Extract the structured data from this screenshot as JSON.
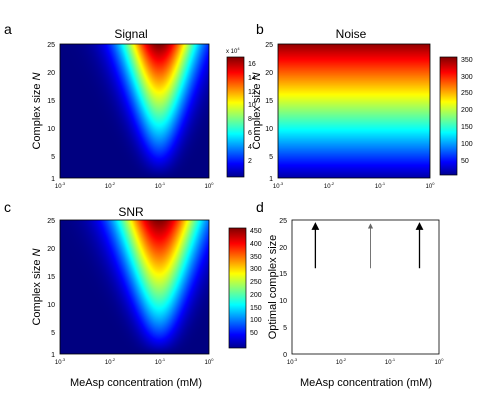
{
  "panels": [
    {
      "letter": "a",
      "title": "Signal",
      "ylabel_main": "Complex size ",
      "ylabel_var": "N",
      "xticks": [
        {
          "base": "10",
          "exp": "-3"
        },
        {
          "base": "10",
          "exp": "-2"
        },
        {
          "base": "10",
          "exp": "-1"
        },
        {
          "base": "10",
          "exp": "0"
        }
      ],
      "yticks": [
        "1",
        "5",
        "10",
        "15",
        "20",
        "25"
      ],
      "colorbar_ticks": [
        "2",
        "4",
        "6",
        "8",
        "10",
        "12",
        "14",
        "16"
      ],
      "colorbar_multiplier": {
        "prefix": "x 10",
        "exp": "4"
      }
    },
    {
      "letter": "b",
      "title": "Noise",
      "ylabel_main": "Complex size ",
      "ylabel_var": "N",
      "xticks": [
        {
          "base": "10",
          "exp": "-3"
        },
        {
          "base": "10",
          "exp": "-2"
        },
        {
          "base": "10",
          "exp": "-1"
        },
        {
          "base": "10",
          "exp": "0"
        }
      ],
      "yticks": [
        "1",
        "5",
        "10",
        "15",
        "20",
        "25"
      ],
      "colorbar_ticks": [
        "50",
        "100",
        "150",
        "200",
        "250",
        "300",
        "350"
      ]
    },
    {
      "letter": "c",
      "title": "SNR",
      "ylabel_main": "Complex size ",
      "ylabel_var": "N",
      "xlabel": "MeAsp concentration (mM)",
      "xticks": [
        {
          "base": "10",
          "exp": "-3"
        },
        {
          "base": "10",
          "exp": "-2"
        },
        {
          "base": "10",
          "exp": "-1"
        },
        {
          "base": "10",
          "exp": "0"
        }
      ],
      "yticks": [
        "1",
        "5",
        "10",
        "15",
        "20",
        "25"
      ],
      "colorbar_ticks": [
        "50",
        "100",
        "150",
        "200",
        "250",
        "300",
        "350",
        "400",
        "450"
      ]
    },
    {
      "letter": "d",
      "ylabel": "Optimal complex size",
      "xlabel": "MeAsp concentration (mM)",
      "xticks": [
        {
          "base": "10",
          "exp": "-3"
        },
        {
          "base": "10",
          "exp": "-2"
        },
        {
          "base": "10",
          "exp": "-1"
        },
        {
          "base": "10",
          "exp": "0"
        }
      ],
      "yticks": [
        "0",
        "5",
        "10",
        "15",
        "20",
        "25"
      ]
    }
  ],
  "chart_data": [
    {
      "type": "heatmap",
      "panel": "a",
      "title": "Signal",
      "ylabel": "Complex size N",
      "xscale": "log",
      "xlim": [
        0.001,
        1
      ],
      "ylim": [
        1,
        25
      ],
      "colorbar_range": [
        0,
        170000
      ],
      "peak": {
        "x": 0.1,
        "y": 25,
        "value": 170000
      },
      "colormap": "jet"
    },
    {
      "type": "heatmap",
      "panel": "b",
      "title": "Noise",
      "ylabel": "Complex size N",
      "xscale": "log",
      "xlim": [
        0.001,
        1
      ],
      "ylim": [
        1,
        25
      ],
      "colorbar_range": [
        20,
        370
      ],
      "colormap": "jet"
    },
    {
      "type": "heatmap",
      "panel": "c",
      "title": "SNR",
      "ylabel": "Complex size N",
      "xlabel": "MeAsp concentration (mM)",
      "xscale": "log",
      "xlim": [
        0.001,
        1
      ],
      "ylim": [
        1,
        25
      ],
      "colorbar_range": [
        0,
        470
      ],
      "peak": {
        "x": 0.1,
        "y": 25,
        "value": 470
      },
      "colormap": "jet"
    },
    {
      "type": "scatter",
      "panel": "d",
      "ylabel": "Optimal complex size",
      "xlabel": "MeAsp concentration (mM)",
      "xscale": "log",
      "xlim": [
        0.001,
        1
      ],
      "ylim": [
        0,
        25
      ],
      "arrows": [
        {
          "x": 0.003,
          "y_start": 16,
          "y_end": 25,
          "color": "#000000"
        },
        {
          "x": 0.04,
          "y_start": 16,
          "y_end": 25,
          "color": "#666666"
        },
        {
          "x": 0.4,
          "y_start": 16,
          "y_end": 25,
          "color": "#000000"
        }
      ]
    }
  ]
}
